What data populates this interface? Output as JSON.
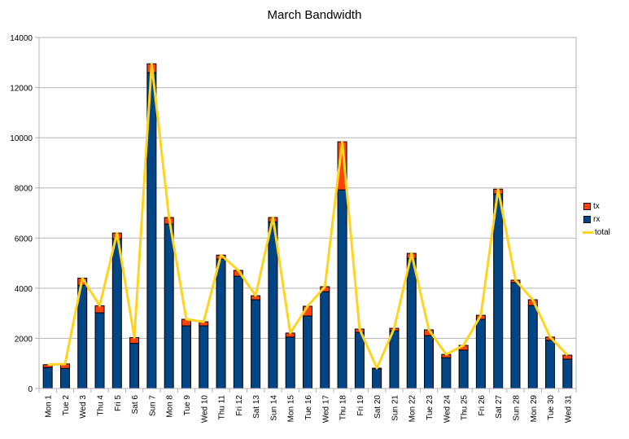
{
  "chart_data": {
    "type": "bar",
    "stacked": true,
    "title": "March Bandwidth",
    "xlabel": "",
    "ylabel": "",
    "ylim": [
      0,
      14000
    ],
    "yticks": [
      0,
      2000,
      4000,
      6000,
      8000,
      10000,
      12000,
      14000
    ],
    "grid": true,
    "legend_position": "right",
    "categories": [
      "Mon 1",
      "Tue 2",
      "Wed 3",
      "Thu 4",
      "Fri 5",
      "Sat 6",
      "Sun 7",
      "Mon 8",
      "Tue 9",
      "Wed 10",
      "Thu 11",
      "Fri 12",
      "Sat 13",
      "Sun 14",
      "Mon 15",
      "Tue 16",
      "Wed 17",
      "Thu 18",
      "Fri 19",
      "Sat 20",
      "Sun 21",
      "Mon 22",
      "Tue 23",
      "Wed 24",
      "Thu 25",
      "Fri 26",
      "Sat 27",
      "Sun 28",
      "Mon 29",
      "Tue 30",
      "Wed 31"
    ],
    "series": [
      {
        "name": "rx",
        "type": "bar",
        "color": "#004586",
        "values": [
          840,
          800,
          4120,
          3020,
          5970,
          1800,
          12600,
          6560,
          2500,
          2500,
          5160,
          4480,
          3540,
          6650,
          2050,
          2890,
          3860,
          7920,
          2240,
          790,
          2300,
          5190,
          2110,
          1230,
          1530,
          2760,
          7760,
          4220,
          3310,
          1920,
          1170
        ]
      },
      {
        "name": "tx",
        "type": "bar",
        "color": "#ff420e",
        "values": [
          110,
          180,
          280,
          280,
          230,
          230,
          350,
          260,
          260,
          160,
          160,
          230,
          160,
          170,
          160,
          390,
          200,
          1920,
          130,
          20,
          100,
          200,
          230,
          130,
          190,
          160,
          190,
          100,
          230,
          130,
          160
        ]
      },
      {
        "name": "total",
        "type": "line",
        "color": "#ffd320",
        "values": [
          950,
          980,
          4400,
          3300,
          6200,
          2030,
          12950,
          6820,
          2760,
          2660,
          5320,
          4710,
          3700,
          6820,
          2210,
          3280,
          4060,
          9840,
          2370,
          810,
          2400,
          5390,
          2340,
          1360,
          1720,
          2920,
          7950,
          4320,
          3540,
          2050,
          1330
        ]
      }
    ]
  },
  "legend": [
    {
      "label": "tx",
      "color": "#ff420e",
      "kind": "box"
    },
    {
      "label": "rx",
      "color": "#004586",
      "kind": "box"
    },
    {
      "label": "total",
      "color": "#ffd320",
      "kind": "line"
    }
  ]
}
